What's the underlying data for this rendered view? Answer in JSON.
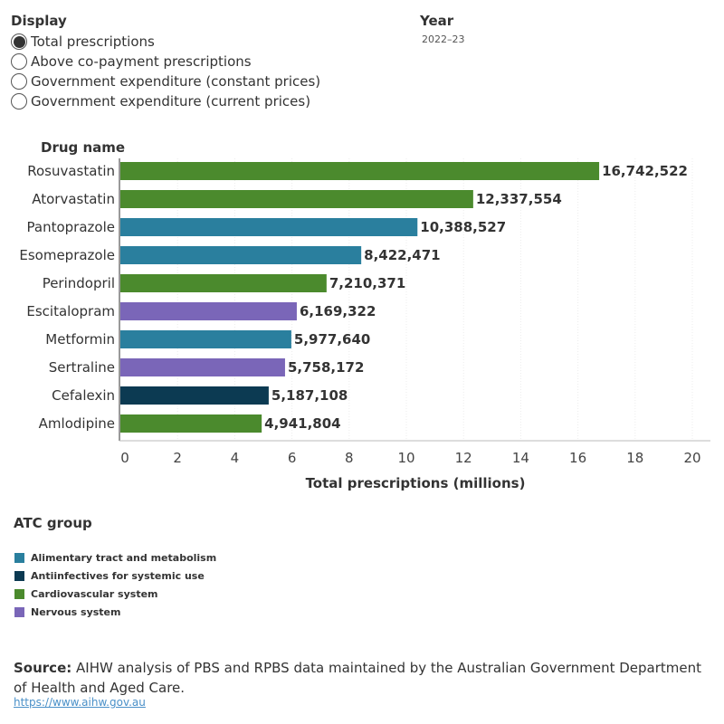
{
  "display": {
    "title": "Display",
    "options": [
      {
        "label": "Total prescriptions",
        "selected": true
      },
      {
        "label": "Above co-payment prescriptions",
        "selected": false
      },
      {
        "label": "Government expenditure (constant prices)",
        "selected": false
      },
      {
        "label": "Government expenditure (current prices)",
        "selected": false
      }
    ]
  },
  "year": {
    "title": "Year",
    "value": "2022–23"
  },
  "chart_data": {
    "type": "bar",
    "orientation": "horizontal",
    "y_header": "Drug name",
    "xlabel": "Total prescriptions (millions)",
    "xlim": [
      0,
      20
    ],
    "x_ticks": [
      0,
      2,
      4,
      6,
      8,
      10,
      12,
      14,
      16,
      18,
      20
    ],
    "grid": true,
    "categories": [
      "Rosuvastatin",
      "Atorvastatin",
      "Pantoprazole",
      "Esomeprazole",
      "Perindopril",
      "Escitalopram",
      "Metformin",
      "Sertraline",
      "Cefalexin",
      "Amlodipine"
    ],
    "values": [
      16742522,
      12337554,
      10388527,
      8422471,
      7210371,
      6169322,
      5977640,
      5758172,
      5187108,
      4941804
    ],
    "value_labels": [
      "16,742,522",
      "12,337,554",
      "10,388,527",
      "8,422,471",
      "7,210,371",
      "6,169,322",
      "5,977,640",
      "5,758,172",
      "5,187,108",
      "4,941,804"
    ],
    "groups": [
      "Cardiovascular system",
      "Cardiovascular system",
      "Alimentary tract and metabolism",
      "Alimentary tract and metabolism",
      "Cardiovascular system",
      "Nervous system",
      "Alimentary tract and metabolism",
      "Nervous system",
      "Antiinfectives for systemic use",
      "Cardiovascular system"
    ],
    "group_colors": {
      "Alimentary tract and metabolism": "#2a7f9e",
      "Antiinfectives for systemic use": "#0c3a52",
      "Cardiovascular system": "#4b8a2d",
      "Nervous system": "#7a66b8"
    }
  },
  "legend": {
    "title": "ATC group",
    "items": [
      {
        "label": "Alimentary tract and metabolism",
        "color": "#2a7f9e"
      },
      {
        "label": "Antiinfectives for systemic use",
        "color": "#0c3a52"
      },
      {
        "label": "Cardiovascular system",
        "color": "#4b8a2d"
      },
      {
        "label": "Nervous system",
        "color": "#7a66b8"
      }
    ]
  },
  "source": {
    "label": "Source:",
    "text": " AIHW analysis of PBS and RPBS data maintained by the Australian Government Department of Health and Aged Care.",
    "link": "https://www.aihw.gov.au"
  }
}
